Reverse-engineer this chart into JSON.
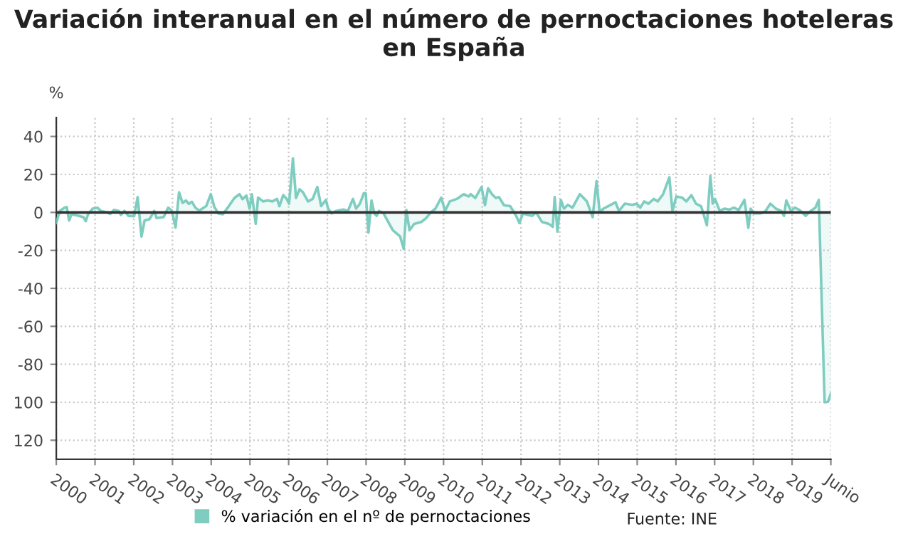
{
  "chart_data": {
    "type": "area",
    "title": "Variación interanual en el número de pernoctaciones hoteleras en España",
    "ylabel": "%",
    "x": [
      2000.0,
      2000.09,
      2000.21,
      2000.27,
      2000.33,
      2000.39,
      2000.51,
      2000.7,
      2000.76,
      2000.82,
      2000.94,
      2001.06,
      2001.15,
      2001.31,
      2001.39,
      2001.49,
      2001.61,
      2001.67,
      2001.76,
      2001.86,
      2002.01,
      2002.1,
      2002.2,
      2002.28,
      2002.41,
      2002.53,
      2002.59,
      2002.77,
      2002.89,
      2002.98,
      2003.08,
      2003.17,
      2003.26,
      2003.35,
      2003.42,
      2003.5,
      2003.59,
      2003.69,
      2003.87,
      2003.99,
      2004.08,
      2004.18,
      2004.3,
      2004.42,
      2004.6,
      2004.73,
      2004.81,
      2004.91,
      2004.99,
      2005.05,
      2005.15,
      2005.21,
      2005.34,
      2005.46,
      2005.58,
      2005.7,
      2005.76,
      2005.86,
      2005.95,
      2006.01,
      2006.11,
      2006.19,
      2006.28,
      2006.37,
      2006.5,
      2006.62,
      2006.74,
      2006.84,
      2006.96,
      2007.02,
      2007.11,
      2007.23,
      2007.41,
      2007.53,
      2007.66,
      2007.74,
      2007.84,
      2007.94,
      2007.99,
      2008.06,
      2008.14,
      2008.21,
      2008.27,
      2008.33,
      2008.45,
      2008.57,
      2008.69,
      2008.88,
      2008.97,
      2009.04,
      2009.12,
      2009.24,
      2009.43,
      2009.55,
      2009.67,
      2009.79,
      2009.94,
      2010.04,
      2010.16,
      2010.34,
      2010.52,
      2010.65,
      2010.7,
      2010.82,
      2010.98,
      2011.07,
      2011.15,
      2011.25,
      2011.35,
      2011.43,
      2011.56,
      2011.72,
      2011.86,
      2011.96,
      2012.05,
      2012.17,
      2012.29,
      2012.39,
      2012.54,
      2012.72,
      2012.82,
      2012.87,
      2012.94,
      2013.03,
      2013.11,
      2013.21,
      2013.33,
      2013.52,
      2013.7,
      2013.85,
      2013.95,
      2014.03,
      2014.13,
      2014.25,
      2014.44,
      2014.53,
      2014.68,
      2014.87,
      2014.99,
      2015.08,
      2015.18,
      2015.29,
      2015.43,
      2015.53,
      2015.67,
      2015.83,
      2015.91,
      2016.01,
      2016.16,
      2016.27,
      2016.4,
      2016.52,
      2016.65,
      2016.8,
      2016.89,
      2016.95,
      2017.01,
      2017.13,
      2017.25,
      2017.38,
      2017.5,
      2017.62,
      2017.77,
      2017.87,
      2017.93,
      2018.01,
      2018.17,
      2018.3,
      2018.44,
      2018.58,
      2018.72,
      2018.79,
      2018.85,
      2018.97,
      2019.07,
      2019.19,
      2019.35,
      2019.48,
      2019.6,
      2019.69,
      2019.84,
      2019.93,
      2020.0
    ],
    "series": [
      {
        "name": "% variación en el nº de pernoctaciones",
        "color": "#7ecdc0",
        "values": [
          -5.6,
          0.8,
          2.5,
          2.8,
          -4.3,
          -1,
          -1.5,
          -2.5,
          -4.6,
          -1,
          2,
          2.5,
          0.8,
          0,
          -0.8,
          1.3,
          0.8,
          -1.3,
          0.8,
          -1.8,
          -2,
          8.1,
          -12.7,
          -4.3,
          -3.5,
          0.8,
          -3,
          -2.5,
          2.5,
          1,
          -8,
          10.6,
          5,
          6.3,
          4.5,
          5.6,
          2.5,
          1,
          3.3,
          9.6,
          3,
          -0.5,
          -1,
          2.3,
          7.6,
          9.6,
          7,
          8.9,
          2,
          9.6,
          -6,
          7.8,
          5.8,
          6.3,
          5.8,
          7.1,
          3.3,
          9.1,
          7.1,
          4.6,
          28.4,
          7.6,
          12.2,
          10.6,
          5.8,
          7.1,
          13.4,
          3.3,
          6.6,
          2,
          -0.5,
          0.8,
          1.5,
          0.8,
          7.1,
          2,
          4.6,
          10.1,
          10.1,
          -10.6,
          6.3,
          -0.5,
          -1.8,
          0.8,
          -0.5,
          -5,
          -9.4,
          -12.7,
          -19.2,
          1.3,
          -9.4,
          -6.1,
          -5,
          -3,
          0,
          2,
          7.8,
          0.8,
          5.8,
          7.1,
          9.6,
          8.4,
          9.6,
          7.6,
          13.4,
          3.8,
          12.7,
          9.6,
          7.6,
          8.1,
          3.8,
          3.3,
          -1.3,
          -5.6,
          -0.5,
          -1.3,
          -1.8,
          0,
          -5,
          -6.1,
          -7.6,
          8.1,
          -10.1,
          6.6,
          2,
          4,
          2.5,
          9.6,
          5.8,
          -2.5,
          16.5,
          0.3,
          2,
          3.3,
          5.3,
          0.8,
          4.6,
          4,
          4.6,
          2.5,
          5.8,
          4.6,
          7.1,
          5.8,
          9.6,
          18.5,
          0.8,
          8.4,
          7.8,
          5.8,
          9.1,
          4.6,
          3.3,
          -6.8,
          19.2,
          4.6,
          7.1,
          0.8,
          2,
          1.5,
          2.5,
          1.3,
          6.6,
          -8.1,
          2,
          -0.5,
          -0.5,
          0.3,
          4.6,
          2,
          0.8,
          -1.8,
          6.3,
          0.8,
          2.5,
          1.3,
          -1.8,
          0.8,
          2.5,
          6.6,
          -100,
          -99.7,
          -95.4
        ]
      }
    ],
    "xlim": [
      2000,
      2020
    ],
    "xticks": [
      2000,
      2001,
      2002,
      2003,
      2004,
      2005,
      2006,
      2007,
      2008,
      2009,
      2010,
      2011,
      2012,
      2013,
      2014,
      2015,
      2016,
      2017,
      2018,
      2019,
      {
        "value": 2020,
        "label": "Junio"
      }
    ],
    "ylim": [
      -130,
      50
    ],
    "yticks": [
      40,
      20,
      0,
      -20,
      -40,
      -60,
      -80,
      {
        "value": -100,
        "label": "100"
      },
      {
        "value": -120,
        "label": "120"
      }
    ],
    "ref_lines": [
      {
        "axis": "y",
        "value": 0,
        "color": "#333333"
      }
    ],
    "grid": true,
    "legend": "bottom",
    "marker": "none",
    "line_style": "solid",
    "annotations": [
      "Fuente: INE"
    ]
  }
}
